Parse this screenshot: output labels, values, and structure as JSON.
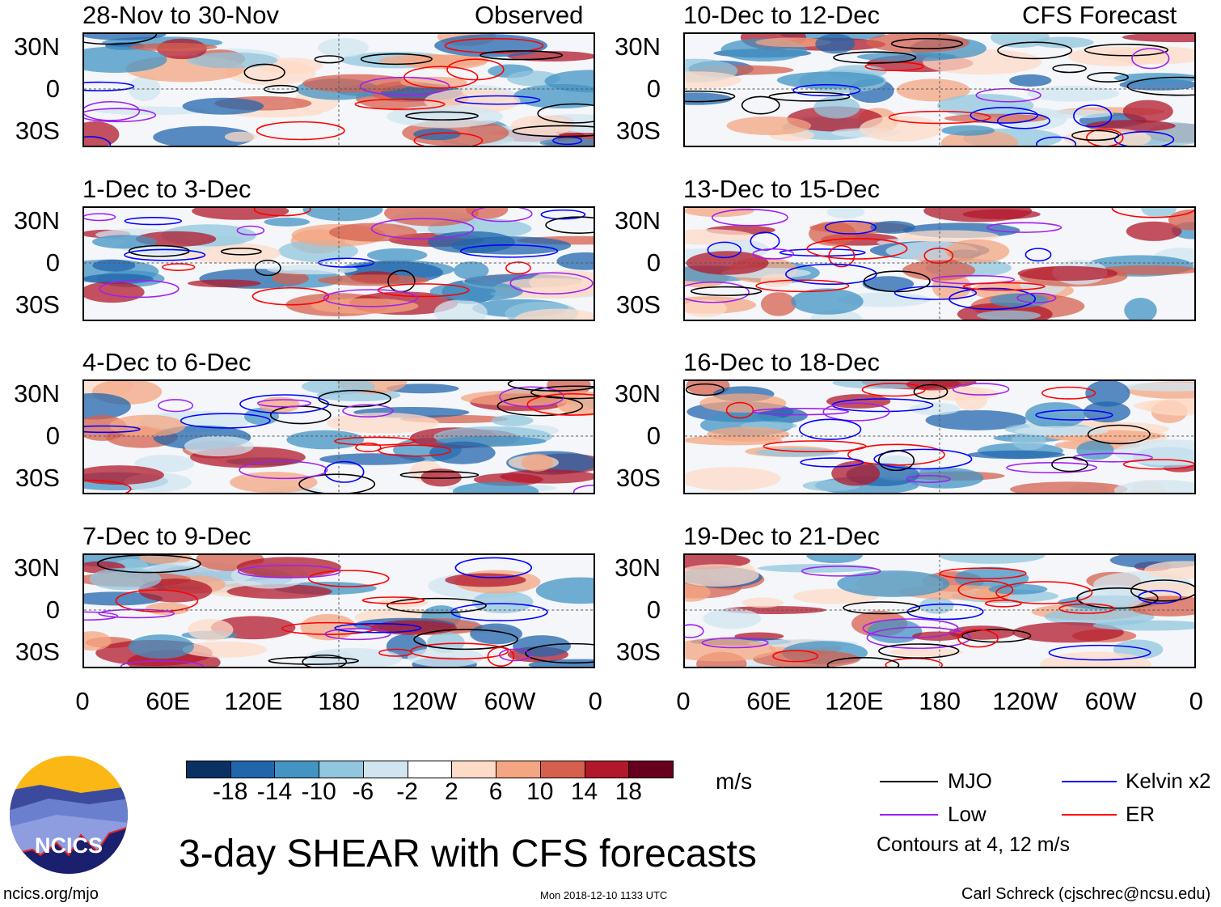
{
  "header": {
    "observed_label": "Observed",
    "forecast_label": "CFS Forecast"
  },
  "panels": [
    {
      "title": "28-Nov to 30-Nov",
      "kind": "observed"
    },
    {
      "title": "1-Dec to 3-Dec",
      "kind": "observed"
    },
    {
      "title": "4-Dec to 6-Dec",
      "kind": "observed"
    },
    {
      "title": "7-Dec to 9-Dec",
      "kind": "observed"
    },
    {
      "title": "10-Dec to 12-Dec",
      "kind": "forecast"
    },
    {
      "title": "13-Dec to 15-Dec",
      "kind": "forecast"
    },
    {
      "title": "16-Dec to 18-Dec",
      "kind": "forecast"
    },
    {
      "title": "19-Dec to 21-Dec",
      "kind": "forecast"
    }
  ],
  "lat_labels": [
    "30N",
    "0",
    "30S"
  ],
  "lon_labels": [
    "0",
    "60E",
    "120E",
    "180",
    "120W",
    "60W",
    "0"
  ],
  "colorbar": {
    "labels": [
      "-18",
      "-14",
      "-10",
      "-6",
      "-2",
      "2",
      "6",
      "10",
      "14",
      "18"
    ],
    "colors": [
      "#0a3163",
      "#2166ac",
      "#4393c3",
      "#92c5de",
      "#d1e5f0",
      "#ffffff",
      "#fddbc7",
      "#f4a582",
      "#d6604d",
      "#b2182b",
      "#67001f"
    ],
    "units": "m/s"
  },
  "legend": {
    "items": [
      {
        "label": "MJO",
        "color": "#000000"
      },
      {
        "label": "Kelvin x2",
        "color": "#0000ff"
      },
      {
        "label": "Low",
        "color": "#a020f0"
      },
      {
        "label": "ER",
        "color": "#ff0000"
      }
    ],
    "note": "Contours at 4, 12 m/s"
  },
  "title": "3-day SHEAR with CFS forecasts",
  "footer": {
    "url": "ncics.org/mjo",
    "timestamp": "Mon 2018-12-10 1133 UTC",
    "credit": "Carl Schreck (cjschrec@ncsu.edu)"
  },
  "logo": {
    "text": "NCICS"
  }
}
